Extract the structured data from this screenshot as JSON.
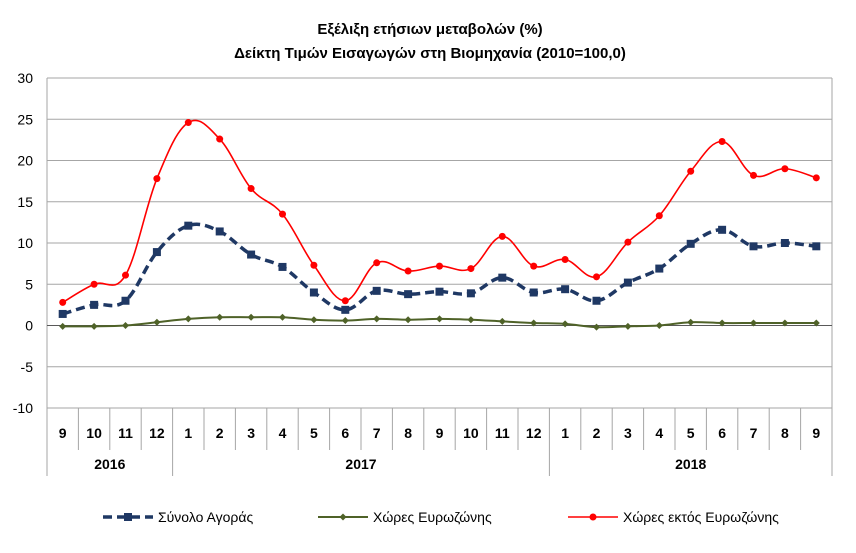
{
  "chart_data": {
    "type": "line",
    "title": "Εξέλιξη ετήσιων μεταβολών (%)",
    "subtitle": "Δείκτη Τιμών Εισαγωγών στη Βιομηχανία (2010=100,0)",
    "x": [
      "9",
      "10",
      "11",
      "12",
      "1",
      "2",
      "3",
      "4",
      "5",
      "6",
      "7",
      "8",
      "9",
      "10",
      "11",
      "12",
      "1",
      "2",
      "3",
      "4",
      "5",
      "6",
      "7",
      "8",
      "9"
    ],
    "years": [
      {
        "label": "2016",
        "start": 0,
        "end": 3
      },
      {
        "label": "2017",
        "start": 4,
        "end": 15
      },
      {
        "label": "2018",
        "start": 16,
        "end": 24
      }
    ],
    "ylim": [
      -10,
      30
    ],
    "yticks": [
      "30",
      "25",
      "20",
      "15",
      "10",
      "5",
      "0",
      "-5",
      "-10"
    ],
    "ytick_values": [
      30,
      25,
      20,
      15,
      10,
      5,
      0,
      -5,
      -10
    ],
    "grid": true,
    "legend_position": "bottom",
    "series": [
      {
        "name": "Σύνολο Αγοράς",
        "color": "#1f3864",
        "values": [
          1.4,
          2.5,
          3.0,
          8.9,
          12.1,
          11.4,
          8.6,
          7.1,
          4.0,
          1.9,
          4.2,
          3.8,
          4.1,
          3.9,
          5.8,
          4.0,
          4.4,
          3.0,
          5.2,
          6.9,
          9.9,
          11.6,
          9.6,
          10.0,
          9.6
        ]
      },
      {
        "name": "Χώρες Ευρωζώνης",
        "color": "#4f6228",
        "values": [
          -0.1,
          -0.1,
          0.0,
          0.4,
          0.8,
          1.0,
          1.0,
          1.0,
          0.7,
          0.6,
          0.8,
          0.7,
          0.8,
          0.7,
          0.5,
          0.3,
          0.2,
          -0.2,
          -0.1,
          0.0,
          0.4,
          0.3,
          0.3,
          0.3,
          0.3
        ]
      },
      {
        "name": "Χώρες εκτός Ευρωζώνης",
        "color": "#ff0000",
        "values": [
          2.8,
          5.0,
          6.1,
          17.8,
          24.6,
          22.6,
          16.6,
          13.5,
          7.3,
          3.0,
          7.6,
          6.6,
          7.2,
          6.9,
          10.8,
          7.2,
          8.0,
          5.9,
          10.1,
          13.3,
          18.7,
          22.3,
          18.2,
          19.0,
          17.9
        ]
      }
    ]
  }
}
